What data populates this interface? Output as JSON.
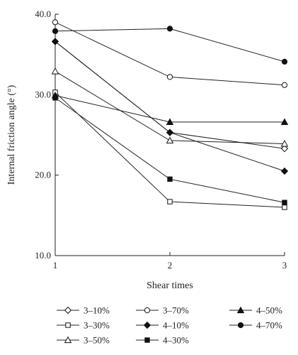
{
  "chart_data": {
    "type": "line",
    "title": "",
    "xlabel": "Shear times",
    "ylabel": "Internal friction angle (°)",
    "x": [
      1,
      2,
      3
    ],
    "x_ticks": [
      "1",
      "2",
      "3"
    ],
    "y_ticks": [
      "10.0",
      "20.0",
      "30.0",
      "40.0"
    ],
    "xlim": [
      1,
      3
    ],
    "ylim": [
      10,
      40
    ],
    "grid": false,
    "legend_position": "bottom",
    "series": [
      {
        "name": "3–10%",
        "marker": "diamond",
        "fill": "open",
        "values": [
          36.6,
          25.3,
          23.3
        ]
      },
      {
        "name": "3–30%",
        "marker": "square",
        "fill": "open",
        "values": [
          30.3,
          16.7,
          16.0
        ]
      },
      {
        "name": "3–50%",
        "marker": "triangle",
        "fill": "open",
        "values": [
          32.9,
          24.3,
          23.9
        ]
      },
      {
        "name": "3–70%",
        "marker": "circle",
        "fill": "open",
        "values": [
          39.0,
          32.2,
          31.2
        ]
      },
      {
        "name": "4–10%",
        "marker": "diamond",
        "fill": "filled",
        "values": [
          36.6,
          25.3,
          20.5
        ]
      },
      {
        "name": "4–30%",
        "marker": "square",
        "fill": "filled",
        "values": [
          29.6,
          19.5,
          16.6
        ]
      },
      {
        "name": "4–50%",
        "marker": "triangle",
        "fill": "filled",
        "values": [
          29.9,
          26.6,
          26.6
        ]
      },
      {
        "name": "4–70%",
        "marker": "circle",
        "fill": "filled",
        "values": [
          37.9,
          38.2,
          34.1
        ]
      }
    ]
  }
}
